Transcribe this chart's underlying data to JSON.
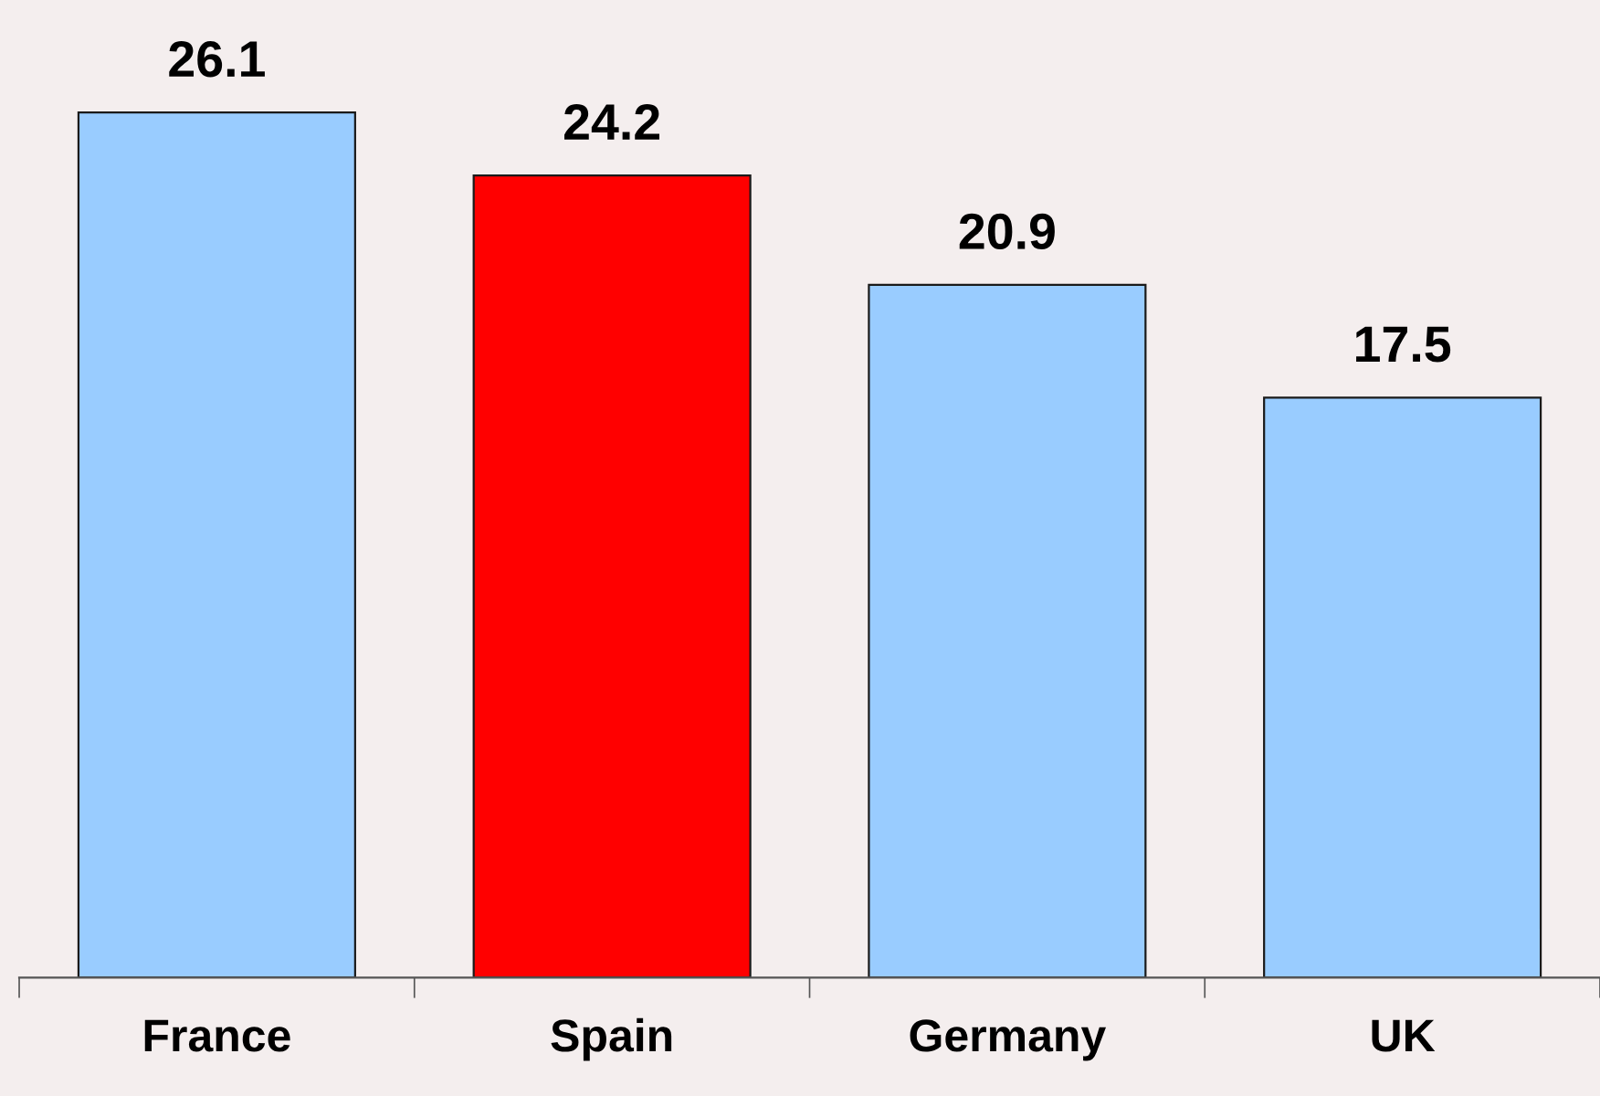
{
  "chart_data": {
    "type": "bar",
    "categories": [
      "France",
      "Spain",
      "Germany",
      "UK"
    ],
    "values": [
      26.1,
      24.2,
      20.9,
      17.5
    ],
    "colors": [
      "#99ccff",
      "#ff0000",
      "#99ccff",
      "#99ccff"
    ],
    "data_labels": true,
    "grid": false,
    "legend": false,
    "tick_labels": "x"
  }
}
